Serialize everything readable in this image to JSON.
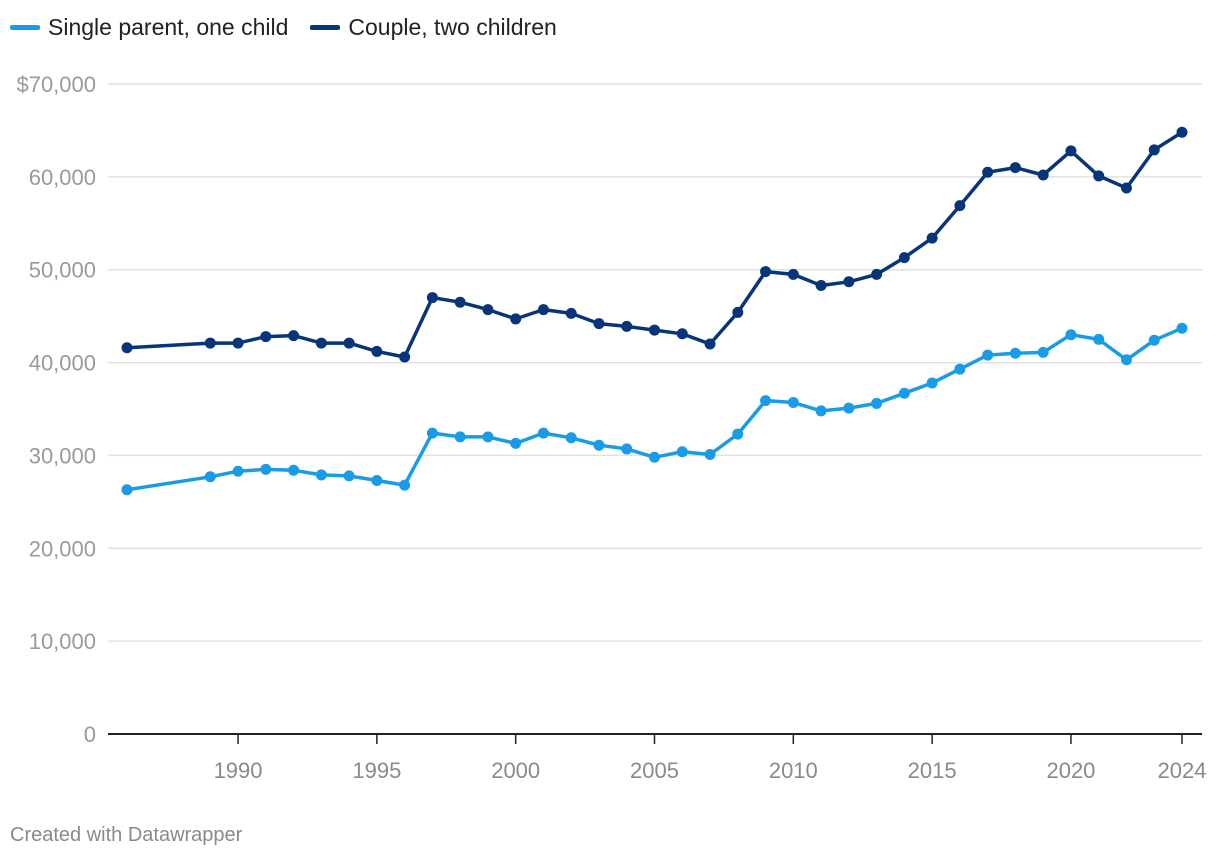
{
  "chart_data": {
    "type": "line",
    "title": "",
    "xlabel": "",
    "ylabel": "",
    "xlim": [
      1986,
      2024
    ],
    "ylim": [
      0,
      70000
    ],
    "y_ticks": [
      0,
      10000,
      20000,
      30000,
      40000,
      50000,
      60000,
      70000
    ],
    "y_tick_labels": [
      "0",
      "10,000",
      "20,000",
      "30,000",
      "40,000",
      "50,000",
      "60,000",
      "$70,000"
    ],
    "x_ticks": [
      1990,
      1995,
      2000,
      2005,
      2010,
      2015,
      2020,
      2024
    ],
    "x_tick_labels": [
      "1990",
      "1995",
      "2000",
      "2005",
      "2010",
      "2015",
      "2020",
      "2024"
    ],
    "grid": true,
    "legend_position": "top-left",
    "series": [
      {
        "name": "Single parent, one child",
        "color": "#1a9be6",
        "x": [
          1986,
          1989,
          1990,
          1991,
          1992,
          1993,
          1994,
          1995,
          1996,
          1997,
          1998,
          1999,
          2000,
          2001,
          2002,
          2003,
          2004,
          2005,
          2006,
          2007,
          2008,
          2009,
          2010,
          2011,
          2012,
          2013,
          2014,
          2015,
          2016,
          2017,
          2018,
          2019,
          2020,
          2021,
          2022,
          2023,
          2024
        ],
        "values": [
          26300,
          27700,
          28300,
          28500,
          28400,
          27900,
          27800,
          27300,
          26800,
          32400,
          32000,
          32000,
          31300,
          32400,
          31900,
          31100,
          30700,
          29800,
          30400,
          30100,
          32300,
          35900,
          35700,
          34800,
          35100,
          35600,
          36700,
          37800,
          39300,
          40800,
          41000,
          41100,
          43000,
          42500,
          40300,
          42400,
          43700
        ]
      },
      {
        "name": "Couple, two children",
        "color": "#08347a",
        "x": [
          1986,
          1989,
          1990,
          1991,
          1992,
          1993,
          1994,
          1995,
          1996,
          1997,
          1998,
          1999,
          2000,
          2001,
          2002,
          2003,
          2004,
          2005,
          2006,
          2007,
          2008,
          2009,
          2010,
          2011,
          2012,
          2013,
          2014,
          2015,
          2016,
          2017,
          2018,
          2019,
          2020,
          2021,
          2022,
          2023,
          2024
        ],
        "values": [
          41600,
          42100,
          42100,
          42800,
          42900,
          42100,
          42100,
          41200,
          40600,
          47000,
          46500,
          45700,
          44700,
          45700,
          45300,
          44200,
          43900,
          43500,
          43100,
          42000,
          45400,
          49800,
          49500,
          48300,
          48700,
          49500,
          51300,
          53400,
          56900,
          60500,
          61000,
          60200,
          62800,
          60100,
          58800,
          62900,
          64800
        ]
      }
    ]
  },
  "footer": {
    "credit": "Created with Datawrapper"
  }
}
